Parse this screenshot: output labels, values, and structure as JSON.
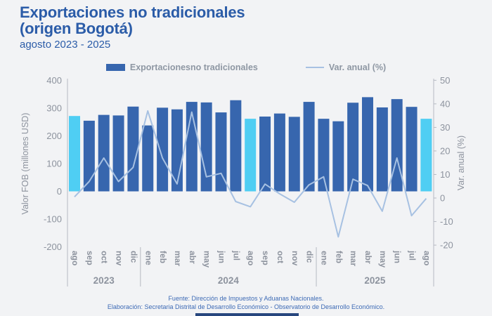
{
  "header": {
    "title_line1": "Exportaciones no tradicionales",
    "title_line2": "(origen Bogotá)",
    "subtitle": "agosto 2023 - 2025"
  },
  "legend": {
    "bars_label": "Exportacionesno tradicionales",
    "line_label": "Var. anual (%)"
  },
  "footer": {
    "line1": "Fuente: Dirección de Impuestos y Aduanas Nacionales.",
    "line2": "Elaboración: Secretaria Distrital de Desarrollo Económico - Observatorio de Desarrollo Económico."
  },
  "colors": {
    "background": "#f2f3f5",
    "title_blue": "#2b5ca8",
    "bar_blue": "#3766ae",
    "bar_highlight_cyan": "#4fcef3",
    "line_light_blue": "#a7c1e2",
    "axis_gray": "#8d939e",
    "axis_line_gray": "#b6bac2",
    "footer_blue": "#3d6ab5",
    "bottom_bar_navy": "#27477e"
  },
  "chart_data": {
    "type": "bar+line combo",
    "categories": [
      "ago",
      "sep",
      "oct",
      "nov",
      "dic",
      "ene",
      "feb",
      "mar",
      "abr",
      "may",
      "jun",
      "jul",
      "ago",
      "sep",
      "oct",
      "nov",
      "dic",
      "ene",
      "feb",
      "mar",
      "abr",
      "may",
      "jun",
      "jul",
      "ago"
    ],
    "year_groups": [
      {
        "label": "2023",
        "start": 0,
        "count": 5
      },
      {
        "label": "2024",
        "start": 5,
        "count": 12
      },
      {
        "label": "2025",
        "start": 17,
        "count": 8
      }
    ],
    "bar_series": {
      "name": "Exportacionesno tradicionales",
      "values": [
        272,
        255,
        276,
        274,
        306,
        238,
        302,
        296,
        323,
        321,
        285,
        329,
        262,
        270,
        281,
        269,
        323,
        262,
        253,
        320,
        340,
        303,
        333,
        305,
        262
      ],
      "highlight_indices": [
        0,
        12,
        24
      ]
    },
    "line_series": {
      "name": "Var. anual (%)",
      "values": [
        0.5,
        7,
        17,
        7,
        13,
        37,
        17,
        6,
        36.5,
        9,
        10.5,
        -1.5,
        -3.7,
        5.9,
        1.8,
        -1.8,
        5.6,
        9,
        -16.5,
        8,
        5.3,
        -5.6,
        17,
        -7.5,
        -0.2
      ]
    },
    "left_axis": {
      "label": "Valor FOB (millones USD)",
      "min": -200,
      "max": 400,
      "ticks": [
        400,
        300,
        200,
        100,
        0,
        -100,
        -200
      ]
    },
    "right_axis": {
      "label": "Var. anual (%)",
      "min": -20,
      "max": 50,
      "ticks": [
        50,
        40,
        30,
        20,
        10,
        0,
        -10,
        -20
      ]
    },
    "grid": "off",
    "legend_position": "top-center"
  }
}
